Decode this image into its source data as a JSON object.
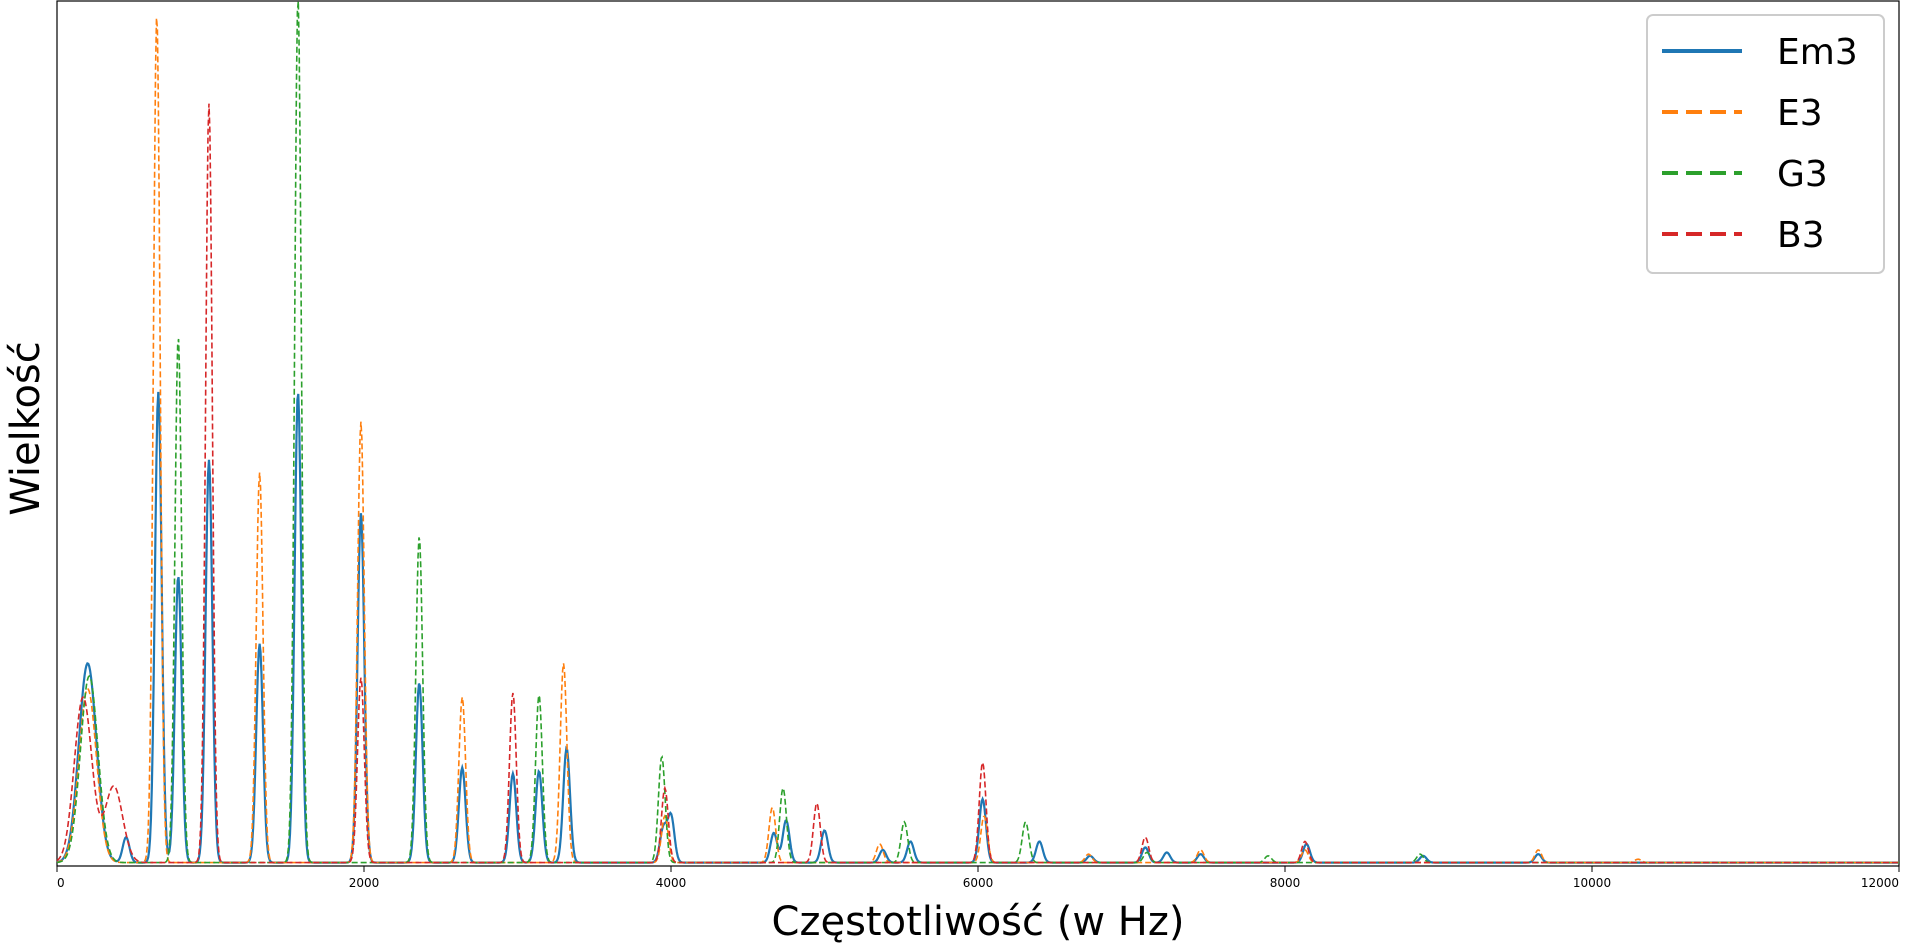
{
  "chart_data": {
    "type": "line",
    "xlabel": "Częstotliwość (w Hz)",
    "ylabel": "Wielkość",
    "xlim": [
      0,
      12000
    ],
    "ylim": [
      0,
      1.02
    ],
    "xticks": [
      0,
      2000,
      4000,
      6000,
      8000,
      10000,
      12000
    ],
    "xtick_labels": [
      "0",
      "2000",
      "4000",
      "6000",
      "8000",
      "10000",
      "12000"
    ],
    "grid": false,
    "legend_position": "top-right",
    "series": [
      {
        "name": "Em3",
        "color": "#1f77b4",
        "dash": "solid",
        "peaks": [
          [
            200,
            0.235
          ],
          [
            450,
            0.03
          ],
          [
            660,
            0.555
          ],
          [
            790,
            0.338
          ],
          [
            990,
            0.475
          ],
          [
            1320,
            0.258
          ],
          [
            1570,
            0.555
          ],
          [
            1980,
            0.412
          ],
          [
            2360,
            0.212
          ],
          [
            2640,
            0.112
          ],
          [
            2970,
            0.105
          ],
          [
            3140,
            0.108
          ],
          [
            3320,
            0.135
          ],
          [
            3950,
            0.04
          ],
          [
            4000,
            0.055
          ],
          [
            4670,
            0.035
          ],
          [
            4750,
            0.05
          ],
          [
            5000,
            0.038
          ],
          [
            5380,
            0.015
          ],
          [
            5560,
            0.025
          ],
          [
            6030,
            0.075
          ],
          [
            6400,
            0.025
          ],
          [
            6730,
            0.008
          ],
          [
            7090,
            0.018
          ],
          [
            7230,
            0.012
          ],
          [
            7450,
            0.01
          ],
          [
            8140,
            0.022
          ],
          [
            8900,
            0.008
          ],
          [
            9650,
            0.01
          ]
        ]
      },
      {
        "name": "E3",
        "color": "#ff7f0e",
        "dash": "dashed",
        "peaks": [
          [
            200,
            0.205
          ],
          [
            650,
            1.0
          ],
          [
            1320,
            0.46
          ],
          [
            1980,
            0.52
          ],
          [
            2640,
            0.195
          ],
          [
            3300,
            0.235
          ],
          [
            3960,
            0.055
          ],
          [
            4660,
            0.065
          ],
          [
            5360,
            0.022
          ],
          [
            6040,
            0.055
          ],
          [
            6720,
            0.01
          ],
          [
            7450,
            0.015
          ],
          [
            8130,
            0.015
          ],
          [
            9650,
            0.015
          ],
          [
            10300,
            0.004
          ]
        ]
      },
      {
        "name": "G3",
        "color": "#2ca02c",
        "dash": "dashed",
        "peaks": [
          [
            210,
            0.22
          ],
          [
            790,
            0.62
          ],
          [
            1570,
            1.02
          ],
          [
            2360,
            0.385
          ],
          [
            3140,
            0.198
          ],
          [
            3940,
            0.125
          ],
          [
            4730,
            0.088
          ],
          [
            5520,
            0.048
          ],
          [
            6310,
            0.048
          ],
          [
            7100,
            0.012
          ],
          [
            7890,
            0.008
          ],
          [
            8880,
            0.01
          ]
        ]
      },
      {
        "name": "B3",
        "color": "#d62728",
        "dash": "dashed",
        "peaks": [
          [
            170,
            0.195
          ],
          [
            370,
            0.09
          ],
          [
            990,
            0.895
          ],
          [
            1980,
            0.218
          ],
          [
            2970,
            0.2
          ],
          [
            3960,
            0.088
          ],
          [
            4950,
            0.07
          ],
          [
            6030,
            0.118
          ],
          [
            7090,
            0.03
          ],
          [
            8130,
            0.025
          ]
        ]
      }
    ]
  }
}
